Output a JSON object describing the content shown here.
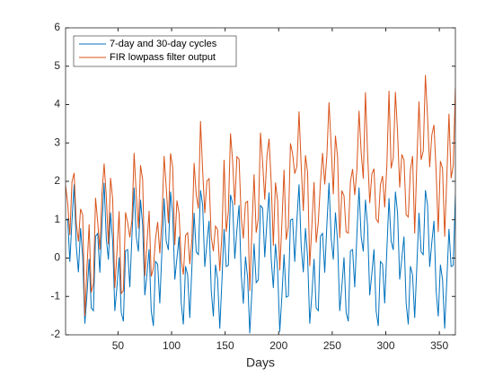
{
  "chart_data": {
    "type": "line",
    "xlabel": "Days",
    "x": [
      1,
      3,
      5,
      7,
      9,
      11,
      13,
      15,
      17,
      19,
      21,
      23,
      25,
      27,
      29,
      31,
      33,
      35,
      37,
      39,
      41,
      43,
      45,
      47,
      49,
      51,
      53,
      55,
      57,
      59,
      61,
      63,
      65,
      67,
      69,
      71,
      73,
      75,
      77,
      79,
      81,
      83,
      85,
      87,
      89,
      91,
      93,
      95,
      97,
      99,
      101,
      103,
      105,
      107,
      109,
      111,
      113,
      115,
      117,
      119,
      121,
      123,
      125,
      127,
      129,
      131,
      133,
      135,
      137,
      139,
      141,
      143,
      145,
      147,
      149,
      151,
      153,
      155,
      157,
      159,
      161,
      163,
      165,
      167,
      169,
      171,
      173,
      175,
      177,
      179,
      181,
      183,
      185,
      187,
      189,
      191,
      193,
      195,
      197,
      199,
      201,
      203,
      205,
      207,
      209,
      211,
      213,
      215,
      217,
      219,
      221,
      223,
      225,
      227,
      229,
      231,
      233,
      235,
      237,
      239,
      241,
      243,
      245,
      247,
      249,
      251,
      253,
      255,
      257,
      259,
      261,
      263,
      265,
      267,
      269,
      271,
      273,
      275,
      277,
      279,
      281,
      283,
      285,
      287,
      289,
      291,
      293,
      295,
      297,
      299,
      301,
      303,
      305,
      307,
      309,
      311,
      313,
      315,
      317,
      319,
      321,
      323,
      325,
      327,
      329,
      331,
      333,
      335,
      337,
      339,
      341,
      343,
      345,
      347,
      349,
      351,
      353,
      355,
      357,
      359,
      361,
      363,
      365
    ],
    "series": [
      {
        "name": "7-day and 30-day cycles",
        "color": "#0072BD",
        "values": [
          0.99,
          1.02,
          -0.1,
          0.99,
          1.92,
          0.31,
          -0.37,
          0.78,
          0.02,
          -1.71,
          -0.95,
          -0.02,
          -1.3,
          -1.37,
          0.57,
          0.64,
          -0.38,
          0.87,
          1.96,
          0.52,
          -0.04,
          1.19,
          0.43,
          -1.38,
          -0.74,
          0.02,
          -1.42,
          -1.65,
          0.19,
          0.22,
          -0.76,
          0.59,
          1.84,
          0.56,
          0.17,
          1.52,
          0.84,
          -0.97,
          -0.41,
          0.23,
          -1.38,
          -1.77,
          -0.09,
          -0.16,
          -1.18,
          0.21,
          1.56,
          0.44,
          0.21,
          1.73,
          1.17,
          -0.56,
          0,
          0.56,
          -1.17,
          -1.73,
          -0.21,
          -0.44,
          -1.56,
          -0.21,
          1.18,
          0.16,
          0.09,
          1.77,
          1.38,
          -0.23,
          0.41,
          0.97,
          -0.84,
          -1.52,
          -0.17,
          -0.56,
          -1.84,
          -0.59,
          0.76,
          -0.22,
          -0.19,
          1.65,
          1.42,
          -0.02,
          0.74,
          1.38,
          -0.43,
          -1.19,
          0.04,
          -0.52,
          -1.96,
          -0.87,
          0.38,
          -0.64,
          -0.57,
          1.37,
          1.3,
          0.02,
          0.95,
          1.71,
          -0.02,
          -0.78,
          0.37,
          -0.31,
          -1.92,
          -0.99,
          0.1,
          -1.02,
          -0.99,
          0.99,
          1.02,
          -0.1,
          0.99,
          1.92,
          0.31,
          -0.37,
          0.78,
          0.02,
          -1.71,
          -0.95,
          -0.02,
          -1.3,
          -1.37,
          0.57,
          0.64,
          -0.38,
          0.87,
          1.96,
          0.52,
          -0.04,
          1.19,
          0.43,
          -1.38,
          -0.74,
          0.02,
          -1.42,
          -1.65,
          0.19,
          0.22,
          -0.76,
          0.59,
          1.84,
          0.56,
          0.17,
          1.52,
          0.84,
          -0.97,
          -0.41,
          0.23,
          -1.38,
          -1.77,
          -0.09,
          -0.16,
          -1.18,
          0.21,
          1.56,
          0.44,
          0.21,
          1.73,
          1.17,
          -0.56,
          0,
          0.56,
          -1.17,
          -1.73,
          -0.21,
          -0.44,
          -1.56,
          -0.21,
          1.18,
          0.16,
          0.09,
          1.77,
          1.38,
          -0.23,
          0.41,
          0.97,
          -0.84,
          -1.52,
          -0.17,
          -0.56,
          -1.84,
          -0.59,
          0.76,
          -0.22,
          -0.19,
          1.65
        ]
      },
      {
        "name": "FIR lowpass filter output",
        "color": "#D95319",
        "values": [
          1.89,
          1.42,
          0.6,
          1.99,
          2.22,
          0.91,
          0.43,
          1.28,
          1.12,
          -1.51,
          -0.25,
          0.88,
          -0.9,
          -0.67,
          1.57,
          0.94,
          0.22,
          1.67,
          2.46,
          1.62,
          0.36,
          2.09,
          1.53,
          -0.78,
          0.16,
          1.22,
          -0.92,
          -0.85,
          1.19,
          0.92,
          0.54,
          0.99,
          2.74,
          1.66,
          0.77,
          2.42,
          2.04,
          -0.47,
          0.39,
          1.23,
          -0.48,
          -0.27,
          0.51,
          0.94,
          0.12,
          1.01,
          2.66,
          1.84,
          0.91,
          2.73,
          2.37,
          0.34,
          1.5,
          1.16,
          -0.07,
          -0.43,
          0.59,
          0.66,
          -0.16,
          0.49,
          2.48,
          1.66,
          1.29,
          3.57,
          2.28,
          1.17,
          2.01,
          2.07,
          0.56,
          0.18,
          0.83,
          0.74,
          -0.34,
          0.61,
          2.56,
          0.68,
          1.21,
          3.25,
          2.52,
          1.38,
          2.64,
          2.58,
          1.07,
          0.51,
          1.44,
          1.48,
          -0.86,
          0.73,
          2.18,
          0.66,
          1.03,
          3.27,
          2.5,
          1.52,
          2.65,
          3.11,
          1.98,
          0.32,
          1.97,
          1.49,
          -0.32,
          0.91,
          2.3,
          0.48,
          0.81,
          2.99,
          2.72,
          2.2,
          2.39,
          3.82,
          2.41,
          1.23,
          2.68,
          2.22,
          -0.21,
          0.85,
          1.98,
          0.4,
          0.93,
          1.97,
          2.74,
          1.92,
          2.67,
          4.06,
          2.92,
          1.66,
          3.19,
          2.63,
          0.52,
          1.76,
          1.62,
          0.68,
          0.65,
          1.99,
          2.32,
          1.64,
          2.29,
          3.84,
          2.76,
          2.07,
          4.32,
          2.74,
          1.43,
          2.19,
          2.33,
          1.02,
          0.93,
          1.91,
          2.14,
          1.32,
          2.41,
          4.36,
          2.34,
          2.61,
          4.33,
          3.27,
          1.84,
          2.7,
          2.56,
          1.13,
          1.07,
          2.29,
          2.66,
          0.64,
          2.49,
          4.08,
          2.56,
          2.79,
          4.77,
          3.68,
          2.37,
          3.21,
          3.47,
          2.26,
          0.68,
          2.53,
          2.34,
          0.56,
          2.11,
          3.76,
          2.08,
          2.41,
          4.45
        ]
      }
    ],
    "xlim": [
      1,
      365
    ],
    "xticks": [
      50,
      100,
      150,
      200,
      250,
      300,
      350
    ],
    "ylim": [
      -2,
      6
    ],
    "yticks": [
      -2,
      -1,
      0,
      1,
      2,
      3,
      4,
      5,
      6
    ],
    "legend": "upper left"
  }
}
